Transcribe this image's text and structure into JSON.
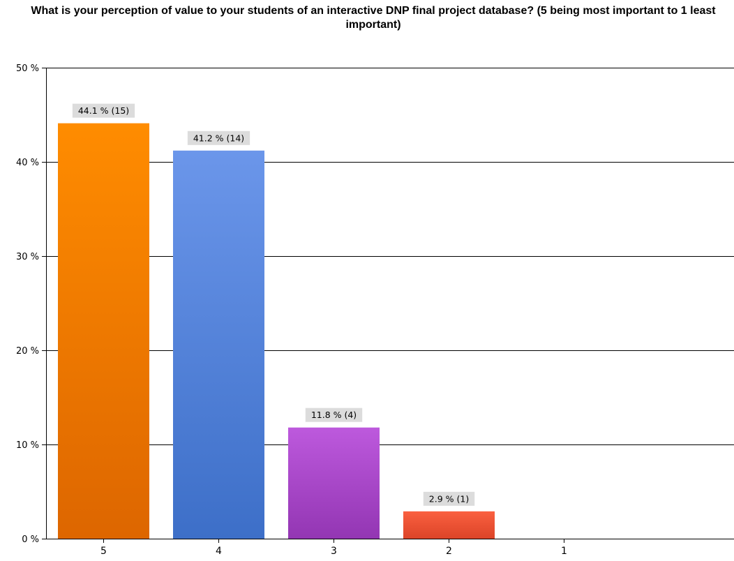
{
  "chart_data": {
    "type": "bar",
    "title": "What is your perception of value to your students of an interactive DNP final project database? (5 being most important to 1 least important)",
    "categories": [
      "5",
      "4",
      "3",
      "2",
      "1"
    ],
    "values": [
      44.1,
      41.2,
      11.8,
      2.9,
      0
    ],
    "counts": [
      15,
      14,
      4,
      1,
      0
    ],
    "data_labels": [
      "44.1 % (15)",
      "41.2 % (14)",
      "11.8 % (4)",
      "2.9 % (1)",
      ""
    ],
    "y_ticks": [
      0,
      10,
      20,
      30,
      40,
      50
    ],
    "y_tick_labels": [
      "0 %",
      "10 %",
      "20 %",
      "30 %",
      "40 %",
      "50 %"
    ],
    "ylim": [
      0,
      50
    ],
    "grid": true,
    "xlabel": "",
    "ylabel": "",
    "bar_colors": [
      {
        "top": "#ff8c00",
        "bottom": "#dd6600"
      },
      {
        "top": "#6b96ea",
        "bottom": "#3d6fc8"
      },
      {
        "top": "#bd59dd",
        "bottom": "#9336b3"
      },
      {
        "top": "#fa6040",
        "bottom": "#dc4428"
      },
      {
        "top": "#cccccc",
        "bottom": "#aaaaaa"
      }
    ],
    "label_bg_color": "#dcdcdc"
  }
}
